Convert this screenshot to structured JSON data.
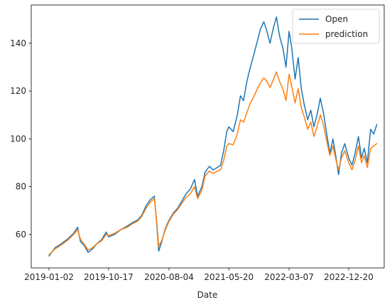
{
  "chart_data": {
    "type": "line",
    "title": "",
    "xlabel": "Date",
    "ylabel": "",
    "x_ticks": [
      "2019-01-02",
      "2019-10-17",
      "2020-08-04",
      "2021-05-20",
      "2022-03-07",
      "2022-12-20"
    ],
    "ylim": [
      46,
      156
    ],
    "y_ticks": [
      60,
      80,
      100,
      120,
      140
    ],
    "grid": false,
    "legend_position": "top-right",
    "series": [
      {
        "name": "Open",
        "color": "#1f77b4",
        "points": [
          [
            "2019-01-02",
            51.0
          ],
          [
            "2019-02-01",
            54.5
          ],
          [
            "2019-03-01",
            56.0
          ],
          [
            "2019-04-01",
            58.0
          ],
          [
            "2019-05-01",
            60.5
          ],
          [
            "2019-05-20",
            63.0
          ],
          [
            "2019-06-03",
            57.0
          ],
          [
            "2019-06-20",
            55.5
          ],
          [
            "2019-07-10",
            52.5
          ],
          [
            "2019-08-01",
            54.0
          ],
          [
            "2019-08-20",
            56.0
          ],
          [
            "2019-09-15",
            58.0
          ],
          [
            "2019-10-05",
            61.0
          ],
          [
            "2019-10-17",
            59.0
          ],
          [
            "2019-11-15",
            60.0
          ],
          [
            "2019-12-15",
            62.0
          ],
          [
            "2020-01-15",
            63.5
          ],
          [
            "2020-02-10",
            65.0
          ],
          [
            "2020-03-05",
            66.0
          ],
          [
            "2020-03-25",
            68.0
          ],
          [
            "2020-04-15",
            72.0
          ],
          [
            "2020-05-05",
            74.5
          ],
          [
            "2020-05-25",
            76.0
          ],
          [
            "2020-06-05",
            65.0
          ],
          [
            "2020-06-15",
            53.0
          ],
          [
            "2020-06-30",
            57.0
          ],
          [
            "2020-07-15",
            62.0
          ],
          [
            "2020-08-04",
            66.0
          ],
          [
            "2020-08-25",
            69.0
          ],
          [
            "2020-09-15",
            71.0
          ],
          [
            "2020-10-05",
            74.0
          ],
          [
            "2020-10-25",
            77.0
          ],
          [
            "2020-11-15",
            79.0
          ],
          [
            "2020-12-05",
            83.0
          ],
          [
            "2020-12-20",
            76.0
          ],
          [
            "2021-01-10",
            80.0
          ],
          [
            "2021-01-25",
            86.0
          ],
          [
            "2021-02-15",
            88.5
          ],
          [
            "2021-03-05",
            87.0
          ],
          [
            "2021-03-25",
            88.0
          ],
          [
            "2021-04-10",
            89.0
          ],
          [
            "2021-04-25",
            95.0
          ],
          [
            "2021-05-10",
            103.0
          ],
          [
            "2021-05-20",
            105.0
          ],
          [
            "2021-06-10",
            103.0
          ],
          [
            "2021-06-30",
            110.0
          ],
          [
            "2021-07-15",
            118.0
          ],
          [
            "2021-07-30",
            116.0
          ],
          [
            "2021-08-15",
            124.0
          ],
          [
            "2021-09-01",
            130.0
          ],
          [
            "2021-09-20",
            136.0
          ],
          [
            "2021-10-05",
            141.0
          ],
          [
            "2021-10-20",
            146.0
          ],
          [
            "2021-11-05",
            149.0
          ],
          [
            "2021-11-20",
            145.0
          ],
          [
            "2021-12-05",
            140.0
          ],
          [
            "2021-12-20",
            146.0
          ],
          [
            "2022-01-05",
            151.0
          ],
          [
            "2022-01-20",
            143.0
          ],
          [
            "2022-02-05",
            138.0
          ],
          [
            "2022-02-20",
            130.0
          ],
          [
            "2022-03-07",
            145.0
          ],
          [
            "2022-03-20",
            138.0
          ],
          [
            "2022-04-05",
            125.0
          ],
          [
            "2022-04-20",
            134.0
          ],
          [
            "2022-05-05",
            121.0
          ],
          [
            "2022-05-20",
            114.0
          ],
          [
            "2022-06-05",
            108.0
          ],
          [
            "2022-06-20",
            112.0
          ],
          [
            "2022-07-05",
            105.0
          ],
          [
            "2022-07-20",
            110.0
          ],
          [
            "2022-08-05",
            117.0
          ],
          [
            "2022-08-20",
            111.0
          ],
          [
            "2022-09-05",
            102.0
          ],
          [
            "2022-09-20",
            94.0
          ],
          [
            "2022-10-05",
            100.0
          ],
          [
            "2022-10-20",
            92.0
          ],
          [
            "2022-11-01",
            85.0
          ],
          [
            "2022-11-15",
            94.0
          ],
          [
            "2022-12-01",
            98.0
          ],
          [
            "2022-12-20",
            92.0
          ],
          [
            "2023-01-05",
            89.0
          ],
          [
            "2023-01-20",
            94.0
          ],
          [
            "2023-02-05",
            101.0
          ],
          [
            "2023-02-20",
            92.0
          ],
          [
            "2023-03-05",
            96.0
          ],
          [
            "2023-03-20",
            90.0
          ],
          [
            "2023-04-05",
            104.0
          ],
          [
            "2023-04-20",
            102.0
          ],
          [
            "2023-05-05",
            106.0
          ]
        ]
      },
      {
        "name": "prediction",
        "color": "#ff7f0e",
        "points": [
          [
            "2019-01-02",
            51.5
          ],
          [
            "2019-02-01",
            54.0
          ],
          [
            "2019-03-01",
            55.5
          ],
          [
            "2019-04-01",
            57.5
          ],
          [
            "2019-05-01",
            60.0
          ],
          [
            "2019-05-20",
            62.0
          ],
          [
            "2019-06-03",
            58.0
          ],
          [
            "2019-06-20",
            56.0
          ],
          [
            "2019-07-10",
            53.5
          ],
          [
            "2019-08-01",
            54.5
          ],
          [
            "2019-08-20",
            56.0
          ],
          [
            "2019-09-15",
            57.5
          ],
          [
            "2019-10-05",
            60.0
          ],
          [
            "2019-10-17",
            59.5
          ],
          [
            "2019-11-15",
            60.5
          ],
          [
            "2019-12-15",
            62.0
          ],
          [
            "2020-01-15",
            63.0
          ],
          [
            "2020-02-10",
            64.5
          ],
          [
            "2020-03-05",
            65.5
          ],
          [
            "2020-03-25",
            67.5
          ],
          [
            "2020-04-15",
            71.0
          ],
          [
            "2020-05-05",
            73.5
          ],
          [
            "2020-05-25",
            75.0
          ],
          [
            "2020-06-05",
            66.0
          ],
          [
            "2020-06-15",
            55.0
          ],
          [
            "2020-06-30",
            57.5
          ],
          [
            "2020-07-15",
            61.5
          ],
          [
            "2020-08-04",
            65.5
          ],
          [
            "2020-08-25",
            68.5
          ],
          [
            "2020-09-15",
            70.5
          ],
          [
            "2020-10-05",
            73.0
          ],
          [
            "2020-10-25",
            75.5
          ],
          [
            "2020-11-15",
            77.0
          ],
          [
            "2020-12-05",
            80.0
          ],
          [
            "2020-12-20",
            75.0
          ],
          [
            "2021-01-10",
            78.5
          ],
          [
            "2021-01-25",
            84.5
          ],
          [
            "2021-02-15",
            86.5
          ],
          [
            "2021-03-05",
            85.5
          ],
          [
            "2021-03-25",
            86.5
          ],
          [
            "2021-04-10",
            87.0
          ],
          [
            "2021-04-25",
            91.0
          ],
          [
            "2021-05-10",
            97.0
          ],
          [
            "2021-05-20",
            98.0
          ],
          [
            "2021-06-10",
            97.5
          ],
          [
            "2021-06-30",
            102.0
          ],
          [
            "2021-07-15",
            108.0
          ],
          [
            "2021-07-30",
            107.0
          ],
          [
            "2021-08-15",
            111.0
          ],
          [
            "2021-09-01",
            115.0
          ],
          [
            "2021-09-20",
            118.0
          ],
          [
            "2021-10-05",
            121.0
          ],
          [
            "2021-10-20",
            123.5
          ],
          [
            "2021-11-05",
            125.5
          ],
          [
            "2021-11-20",
            124.0
          ],
          [
            "2021-12-05",
            121.5
          ],
          [
            "2021-12-20",
            124.5
          ],
          [
            "2022-01-05",
            128.0
          ],
          [
            "2022-01-20",
            124.0
          ],
          [
            "2022-02-05",
            121.0
          ],
          [
            "2022-02-20",
            116.0
          ],
          [
            "2022-03-07",
            127.0
          ],
          [
            "2022-03-20",
            122.0
          ],
          [
            "2022-04-05",
            115.0
          ],
          [
            "2022-04-20",
            121.0
          ],
          [
            "2022-05-05",
            113.0
          ],
          [
            "2022-05-20",
            109.0
          ],
          [
            "2022-06-05",
            104.0
          ],
          [
            "2022-06-20",
            107.0
          ],
          [
            "2022-07-05",
            101.0
          ],
          [
            "2022-07-20",
            105.0
          ],
          [
            "2022-08-05",
            110.0
          ],
          [
            "2022-08-20",
            106.0
          ],
          [
            "2022-09-05",
            99.0
          ],
          [
            "2022-09-20",
            93.0
          ],
          [
            "2022-10-05",
            97.0
          ],
          [
            "2022-10-20",
            91.0
          ],
          [
            "2022-11-01",
            87.0
          ],
          [
            "2022-11-15",
            92.0
          ],
          [
            "2022-12-01",
            95.0
          ],
          [
            "2022-12-20",
            90.0
          ],
          [
            "2023-01-05",
            87.0
          ],
          [
            "2023-01-20",
            91.0
          ],
          [
            "2023-02-05",
            97.0
          ],
          [
            "2023-02-20",
            90.0
          ],
          [
            "2023-03-05",
            93.0
          ],
          [
            "2023-03-20",
            88.0
          ],
          [
            "2023-04-05",
            96.0
          ],
          [
            "2023-04-20",
            97.0
          ],
          [
            "2023-05-05",
            98.0
          ]
        ]
      }
    ]
  }
}
